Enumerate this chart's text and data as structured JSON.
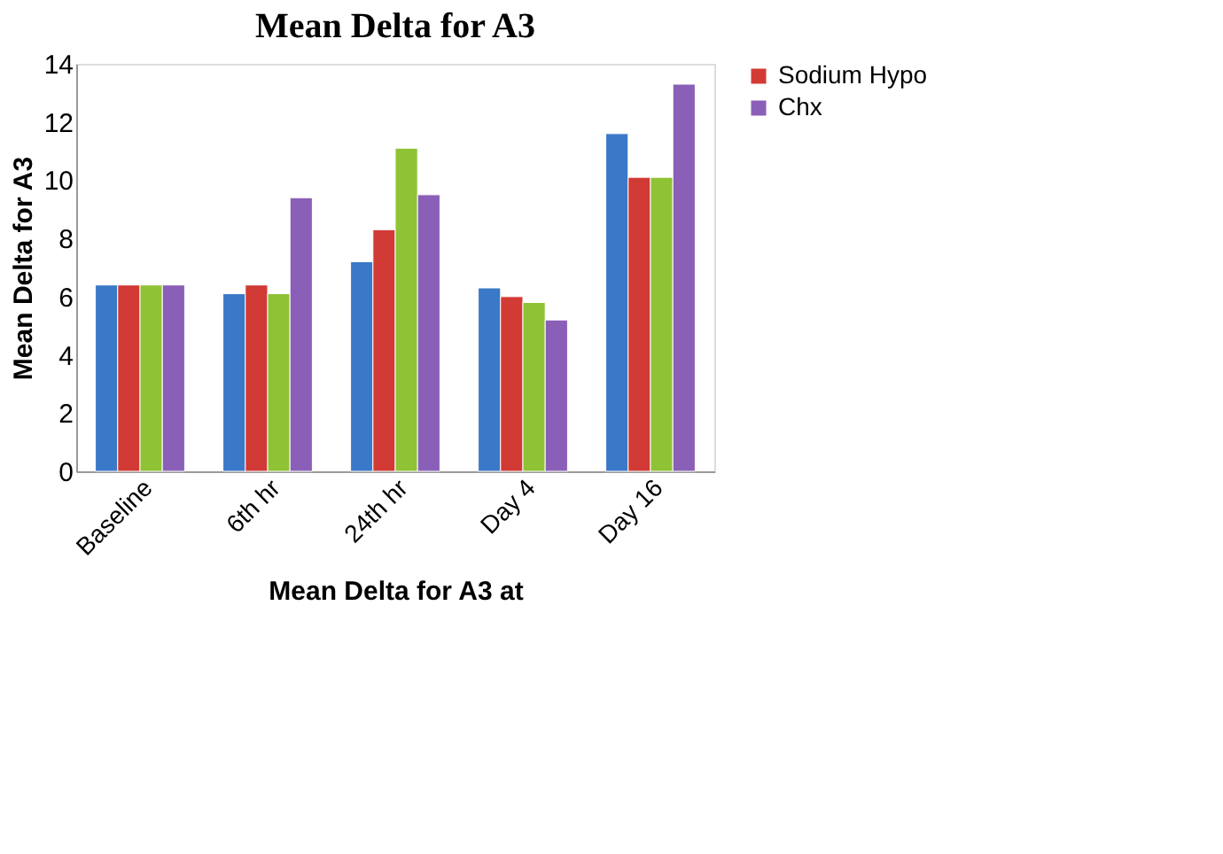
{
  "chart_data": {
    "type": "bar",
    "title": "Mean Delta for A3",
    "xlabel": "Mean Delta for A3 at",
    "ylabel": "Mean Delta for A3",
    "categories": [
      "Baseline",
      "6th hr",
      "24th hr",
      "Day 4",
      "Day 16"
    ],
    "series": [
      {
        "color": "#3a78c8",
        "values": [
          6.4,
          6.1,
          7.2,
          6.3,
          11.6
        ]
      },
      {
        "name": "Sodium Hypo",
        "color": "#d23a35",
        "values": [
          6.4,
          6.4,
          8.3,
          6.0,
          10.1
        ]
      },
      {
        "color": "#8fc234",
        "values": [
          6.4,
          6.1,
          11.1,
          5.8,
          10.1
        ]
      },
      {
        "name": "Chx",
        "color": "#8a5fb8",
        "values": [
          6.4,
          9.4,
          9.5,
          5.2,
          13.3
        ]
      }
    ],
    "ylim": [
      0,
      14
    ],
    "yticks": [
      0,
      2,
      4,
      6,
      8,
      10,
      12,
      14
    ],
    "grid": false,
    "legend": "right"
  }
}
